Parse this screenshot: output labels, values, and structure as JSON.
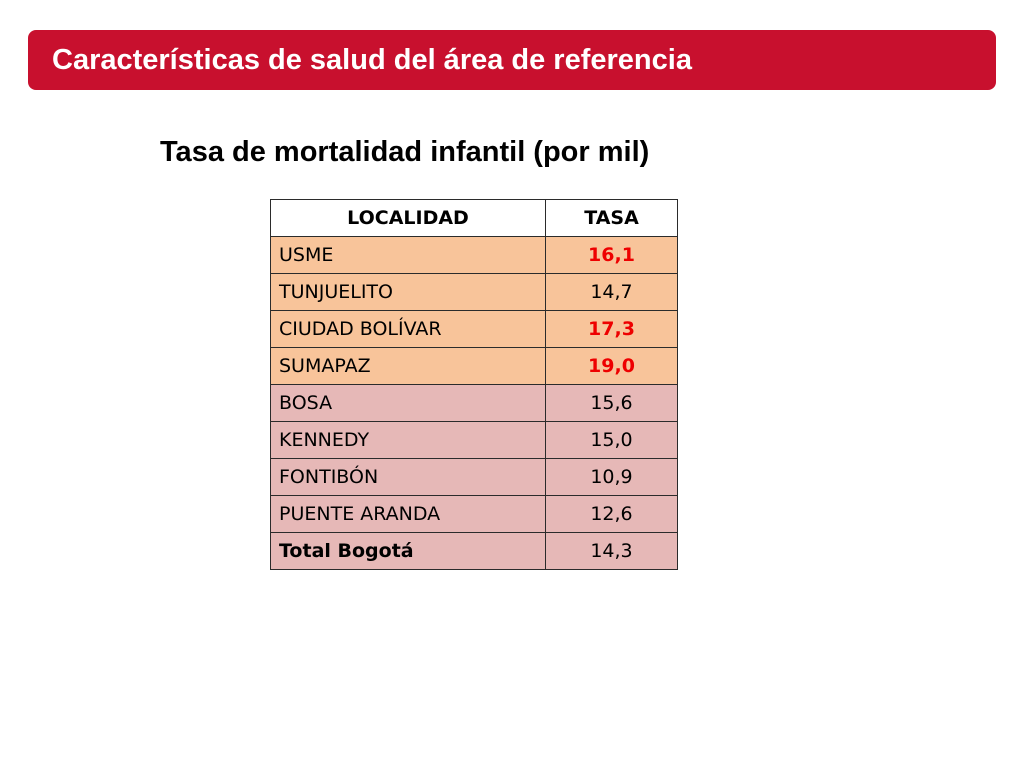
{
  "header": {
    "title": "Características de salud del área de referencia",
    "banner_color": "#c8102e"
  },
  "subtitle": "Tasa de mortalidad infantil (por mil)",
  "table": {
    "columns": [
      "LOCALIDAD",
      "TASA"
    ],
    "colors": {
      "group_a_bg": "#f8c49a",
      "group_b_bg": "#e6b8b7",
      "highlight_text": "#ee0000"
    },
    "rows": [
      {
        "localidad": "USME",
        "tasa": "16,1",
        "group": "a",
        "highlight": true,
        "bold_label": false
      },
      {
        "localidad": "TUNJUELITO",
        "tasa": "14,7",
        "group": "a",
        "highlight": false,
        "bold_label": false
      },
      {
        "localidad": "CIUDAD BOLÍVAR",
        "tasa": "17,3",
        "group": "a",
        "highlight": true,
        "bold_label": false
      },
      {
        "localidad": "SUMAPAZ",
        "tasa": "19,0",
        "group": "a",
        "highlight": true,
        "bold_label": false
      },
      {
        "localidad": "BOSA",
        "tasa": "15,6",
        "group": "b",
        "highlight": false,
        "bold_label": false
      },
      {
        "localidad": "KENNEDY",
        "tasa": "15,0",
        "group": "b",
        "highlight": false,
        "bold_label": false
      },
      {
        "localidad": "FONTIBÓN",
        "tasa": "10,9",
        "group": "b",
        "highlight": false,
        "bold_label": false
      },
      {
        "localidad": "PUENTE ARANDA",
        "tasa": "12,6",
        "group": "b",
        "highlight": false,
        "bold_label": false
      },
      {
        "localidad": "Total Bogotá",
        "tasa": "14,3",
        "group": "b",
        "highlight": false,
        "bold_label": true
      }
    ]
  }
}
